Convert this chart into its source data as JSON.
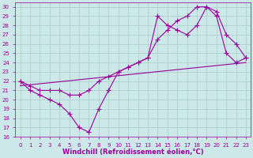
{
  "xlabel": "Windchill (Refroidissement éolien,°C)",
  "bg_color": "#cce8e8",
  "grid_color": "#aacccc",
  "line_color": "#990099",
  "xlim": [
    -0.5,
    23.5
  ],
  "ylim": [
    16,
    30.5
  ],
  "xticks": [
    0,
    1,
    2,
    3,
    4,
    5,
    6,
    7,
    8,
    9,
    10,
    11,
    12,
    13,
    14,
    15,
    16,
    17,
    18,
    19,
    20,
    21,
    22,
    23
  ],
  "yticks": [
    16,
    17,
    18,
    19,
    20,
    21,
    22,
    23,
    24,
    25,
    26,
    27,
    28,
    29,
    30
  ],
  "line1_x": [
    0,
    1,
    2,
    3,
    4,
    5,
    6,
    7,
    8,
    9,
    10,
    11,
    12,
    13,
    14,
    15,
    16,
    17,
    18,
    19,
    20,
    21,
    22,
    23
  ],
  "line1_y": [
    22,
    21,
    20.5,
    20,
    19.5,
    18.5,
    17,
    16.5,
    19,
    21,
    23,
    23.5,
    24,
    24.5,
    29,
    28,
    27.5,
    27,
    28,
    30,
    29,
    25,
    24,
    24.5
  ],
  "line2_x": [
    0,
    1,
    2,
    3,
    4,
    5,
    6,
    7,
    8,
    9,
    10,
    11,
    12,
    13,
    14,
    15,
    16,
    17,
    18,
    19,
    20,
    21,
    22,
    23
  ],
  "line2_y": [
    22,
    21.5,
    21,
    21,
    21,
    20.5,
    20.5,
    21,
    22,
    22.5,
    23,
    23.5,
    24,
    24.5,
    26.5,
    27.5,
    28.5,
    29,
    30,
    30,
    29.5,
    27,
    26,
    24.5
  ],
  "line3_x": [
    0,
    23
  ],
  "line3_y": [
    21.5,
    24.0
  ],
  "marker": "+",
  "markersize": 4,
  "linewidth": 0.8,
  "tick_fontsize": 5,
  "label_fontsize": 6
}
